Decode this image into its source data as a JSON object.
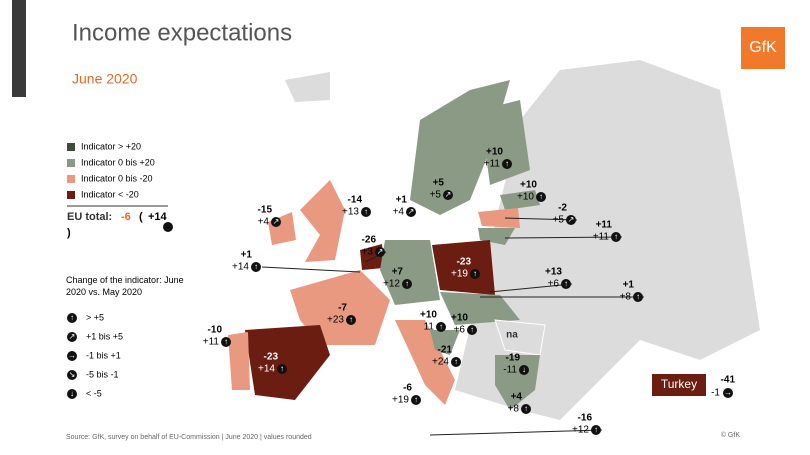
{
  "header": {
    "title": "Income expectations",
    "subtitle": "June 2020",
    "logo": "GfK"
  },
  "legend": {
    "items": [
      "Indicator > +20",
      "Indicator 0 bis +20",
      "Indicator 0 bis -20",
      "Indicator < -20"
    ]
  },
  "eu_total": {
    "label": "EU total:",
    "value": "-6",
    "open": "(",
    "change": "+14",
    "close": ")"
  },
  "change_legend": {
    "title": "Change of the indicator: June 2020 vs. May 2020",
    "items": [
      "> +5",
      "+1 bis +5",
      "-1 bis +1",
      "-5 bis -1",
      "< -5"
    ]
  },
  "countries": [
    {
      "indicator": "-15",
      "change": "+4"
    },
    {
      "indicator": "-14",
      "change": "+13"
    },
    {
      "indicator": "+1",
      "change": "+4"
    },
    {
      "indicator": "+5",
      "change": "+5"
    },
    {
      "indicator": "+10",
      "change": "+11"
    },
    {
      "indicator": "+10",
      "change": "+10"
    },
    {
      "indicator": "-2",
      "change": "+5"
    },
    {
      "indicator": "+11",
      "change": "+11"
    },
    {
      "indicator": "-26",
      "change": "+3"
    },
    {
      "indicator": "+1",
      "change": "+14"
    },
    {
      "indicator": "+7",
      "change": "+12"
    },
    {
      "indicator": "-23",
      "change": "+19"
    },
    {
      "indicator": "+13",
      "change": "+6"
    },
    {
      "indicator": "+1",
      "change": "+8"
    },
    {
      "indicator": "-7",
      "change": "+23"
    },
    {
      "indicator": "+10",
      "change": "11"
    },
    {
      "indicator": "+10",
      "change": "+6"
    },
    {
      "indicator": "-10",
      "change": "+11"
    },
    {
      "indicator": "-23",
      "change": "+14"
    },
    {
      "indicator": "-21",
      "change": "+24"
    },
    {
      "indicator": "-19",
      "change": "-11"
    },
    {
      "indicator": "-6",
      "change": "+19"
    },
    {
      "indicator": "+4",
      "change": "+8"
    },
    {
      "indicator": "-16",
      "change": "+12"
    }
  ],
  "na": "na",
  "turkey": {
    "name": "Turkey",
    "indicator": "-41",
    "change": "-1"
  },
  "footer": {
    "source": "Source: GfK, survey on behalf of EU-Commission | June 2020 | values rounded",
    "copyright": "© GfK"
  }
}
